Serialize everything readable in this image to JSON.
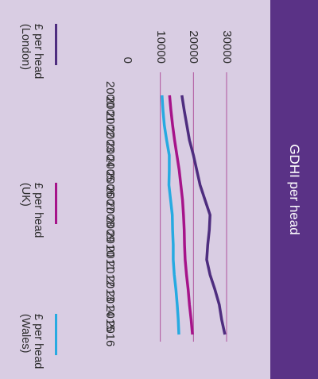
{
  "chart_data": {
    "type": "line",
    "title": "GDHI per head",
    "xlabel": "",
    "ylabel": "",
    "x": [
      "2000",
      "2001",
      "2002",
      "2003",
      "2004",
      "2005",
      "2006",
      "2007",
      "2008",
      "2009",
      "2010",
      "2011",
      "2012",
      "2013",
      "2014",
      "2015",
      "2016"
    ],
    "ylim": [
      0,
      35000
    ],
    "yticks": [
      "0",
      "10000",
      "20000",
      "30000"
    ],
    "grid": true,
    "legend_position": "bottom",
    "series": [
      {
        "name": "£ per head\n(London)",
        "color": "#4e2d7f",
        "values": [
          16500,
          17200,
          18000,
          18800,
          20000,
          21000,
          22000,
          23500,
          25000,
          24800,
          24300,
          24000,
          25000,
          26500,
          27800,
          28500,
          29500
        ]
      },
      {
        "name": "£ per head\n(UK)",
        "color": "#a6148a",
        "values": [
          12800,
          13200,
          13700,
          14300,
          15000,
          15700,
          16200,
          16700,
          17000,
          17200,
          17300,
          17500,
          17900,
          18400,
          18800,
          19300,
          19700
        ]
      },
      {
        "name": "£ per head\n(Wales)",
        "color": "#27aae1",
        "values": [
          10500,
          10800,
          11200,
          11900,
          12700,
          12700,
          12600,
          13100,
          13600,
          13700,
          13900,
          13900,
          14200,
          14700,
          15100,
          15400,
          15600
        ]
      }
    ]
  }
}
